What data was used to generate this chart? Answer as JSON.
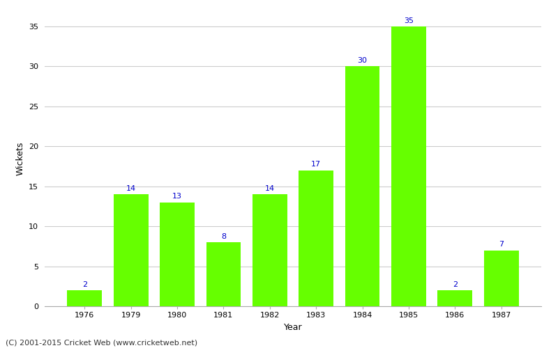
{
  "years": [
    "1976",
    "1979",
    "1980",
    "1981",
    "1982",
    "1983",
    "1984",
    "1985",
    "1986",
    "1987"
  ],
  "wickets": [
    2,
    14,
    13,
    8,
    14,
    17,
    30,
    35,
    2,
    7
  ],
  "bar_color": "#66ff00",
  "bar_edgecolor": "#66ff00",
  "xlabel": "Year",
  "ylabel": "Wickets",
  "ylim": [
    0,
    37
  ],
  "yticks": [
    0,
    5,
    10,
    15,
    20,
    25,
    30,
    35
  ],
  "label_color": "#0000cc",
  "label_fontsize": 8,
  "footer": "(C) 2001-2015 Cricket Web (www.cricketweb.net)",
  "footer_fontsize": 8,
  "bg_color": "#ffffff",
  "grid_color": "#cccccc",
  "axis_label_fontsize": 9,
  "tick_fontsize": 8,
  "bar_width": 0.75
}
